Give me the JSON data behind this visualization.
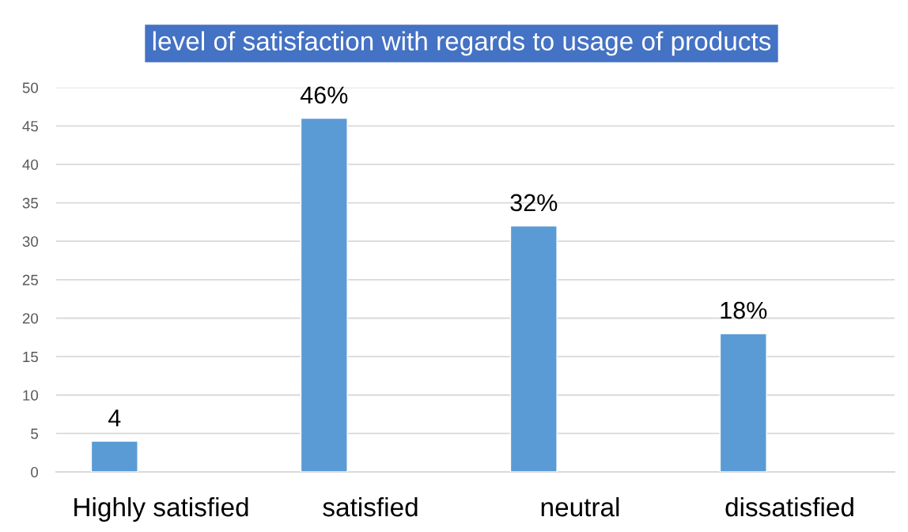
{
  "chart_data": {
    "type": "bar",
    "title": "level of satisfaction with regards to usage of products",
    "categories": [
      "Highly satisfied",
      "satisfied",
      "neutral",
      "dissatisfied"
    ],
    "values": [
      4,
      46,
      32,
      18
    ],
    "value_labels": [
      "4",
      "46%",
      "32%",
      "18%"
    ],
    "color": "#5b9bd5",
    "ylim": [
      0,
      50
    ],
    "yticks": [
      0,
      5,
      10,
      15,
      20,
      25,
      30,
      35,
      40,
      45,
      50
    ],
    "grid": "y"
  }
}
